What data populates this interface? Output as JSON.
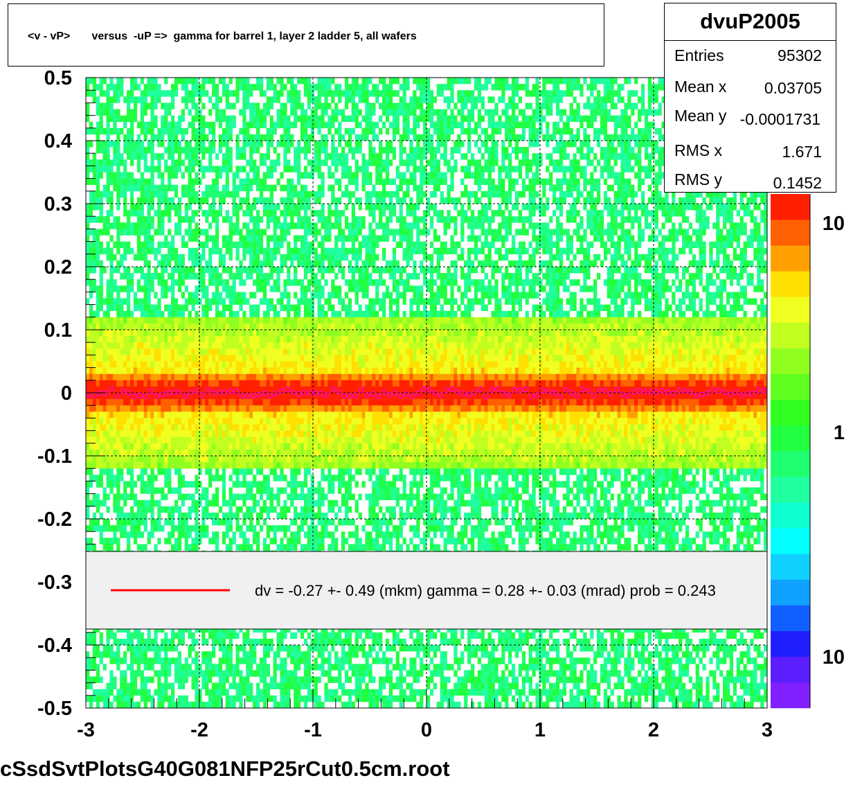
{
  "title": "<v - vP>       versus  -uP =>  gamma for barrel 1, layer 2 ladder 5, all wafers",
  "stats": {
    "name": "dvuP2005",
    "entries_label": "Entries",
    "entries": "95302",
    "meanx_label": "Mean x",
    "meanx": "0.03705",
    "meany_label": "Mean y",
    "meany": "-0.0001731",
    "rmsx_label": "RMS x",
    "rmsx": "1.671",
    "rmsy_label": "RMS y",
    "rmsy": "0.1452"
  },
  "legend": {
    "text": "dv =   -0.27 +-  0.49 (mkm) gamma =    0.28 +-  0.03 (mrad) prob = 0.243",
    "line_color": "#ff0000"
  },
  "footer": "cSsdSvtPlotsG40G081NFP25rCut0.5cm.root",
  "chart_data": {
    "type": "heatmap",
    "title": "<v - vP>       versus  -uP =>  gamma for barrel 1, layer 2 ladder 5, all wafers",
    "xlim": [
      -3,
      3
    ],
    "ylim": [
      -0.5,
      0.5
    ],
    "x_ticks": [
      "-3",
      "-2",
      "-1",
      "0",
      "1",
      "2",
      "3"
    ],
    "y_ticks": [
      "0.5",
      "0.4",
      "0.3",
      "0.2",
      "0.1",
      "0",
      "-0.1",
      "-0.2",
      "-0.3",
      "-0.4",
      "-0.5"
    ],
    "grid": true,
    "z_scale": "log",
    "z_ticks": [
      "10",
      "1",
      "10"
    ],
    "band_center_y": 0.0,
    "band_rms_y": 0.1452,
    "profile_points_y": 0.0,
    "colors": {
      "palette": [
        "#8020ff",
        "#5a1eff",
        "#2020ff",
        "#1060ff",
        "#10a0ff",
        "#10d0ff",
        "#00ffff",
        "#10ffd0",
        "#20ffa0",
        "#20ff70",
        "#20ff40",
        "#30ff20",
        "#60ff20",
        "#90ff20",
        "#c0ff20",
        "#f0ff20",
        "#ffe000",
        "#ffa000",
        "#ff6000",
        "#ff2000"
      ],
      "background": "#ffffff",
      "profile_marker": "#ff00ff"
    }
  }
}
